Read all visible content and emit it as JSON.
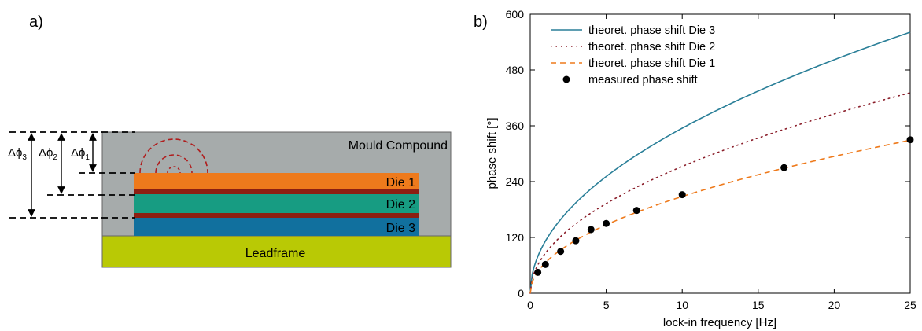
{
  "panel_a": {
    "label": "a)",
    "layers": {
      "mould": "Mould Compound",
      "die1": "Die 1",
      "die2": "Die 2",
      "die3": "Die 3",
      "leadframe": "Leadframe"
    },
    "dimensions": {
      "d3": {
        "base": "Δϕ",
        "sub": "3"
      },
      "d2": {
        "base": "Δϕ",
        "sub": "2"
      },
      "d1": {
        "base": "Δϕ",
        "sub": "1"
      }
    },
    "colors": {
      "mould": "#a6abab",
      "die1": "#ee7a1c",
      "die2": "#179c82",
      "die3": "#11709e",
      "separator": "#8c1f12",
      "leadframe": "#b9c905",
      "wave": "#b01c1c"
    }
  },
  "chart_data": {
    "type": "line",
    "panel_label": "b)",
    "xlabel": "lock-in frequency [Hz]",
    "ylabel": "phase shift [°]",
    "xlim": [
      0,
      25
    ],
    "ylim": [
      0,
      600
    ],
    "xticks": [
      0,
      5,
      10,
      15,
      20,
      25
    ],
    "yticks": [
      0,
      120,
      240,
      360,
      480,
      600
    ],
    "grid": false,
    "legend_position": "top-left",
    "series": [
      {
        "name": "theoret. phase shift Die 3",
        "style": "solid",
        "color": "#2a7f98",
        "x": [
          0.2,
          1,
          3,
          5,
          10,
          15,
          20,
          25
        ],
        "y": [
          50,
          112,
          194,
          251,
          355,
          435,
          502,
          561
        ]
      },
      {
        "name": "theoret. phase shift Die 2",
        "style": "dotted",
        "color": "#8b1f2b",
        "x": [
          0.2,
          1,
          3,
          5,
          10,
          15,
          20,
          25
        ],
        "y": [
          38,
          86,
          149,
          193,
          272,
          334,
          386,
          431
        ]
      },
      {
        "name": "theoret. phase shift Die 1",
        "style": "dashed",
        "color": "#ee7a1c",
        "x": [
          0.2,
          1,
          3,
          5,
          10,
          15,
          20,
          25
        ],
        "y": [
          30,
          66,
          114,
          147,
          208,
          255,
          294,
          329
        ]
      },
      {
        "name": "measured phase shift",
        "style": "markers",
        "color": "#000000",
        "x": [
          0.5,
          1,
          2,
          3,
          4,
          5,
          7,
          10,
          16.7,
          25
        ],
        "y": [
          45,
          62,
          90,
          113,
          137,
          150,
          178,
          212,
          270,
          330
        ]
      }
    ]
  }
}
